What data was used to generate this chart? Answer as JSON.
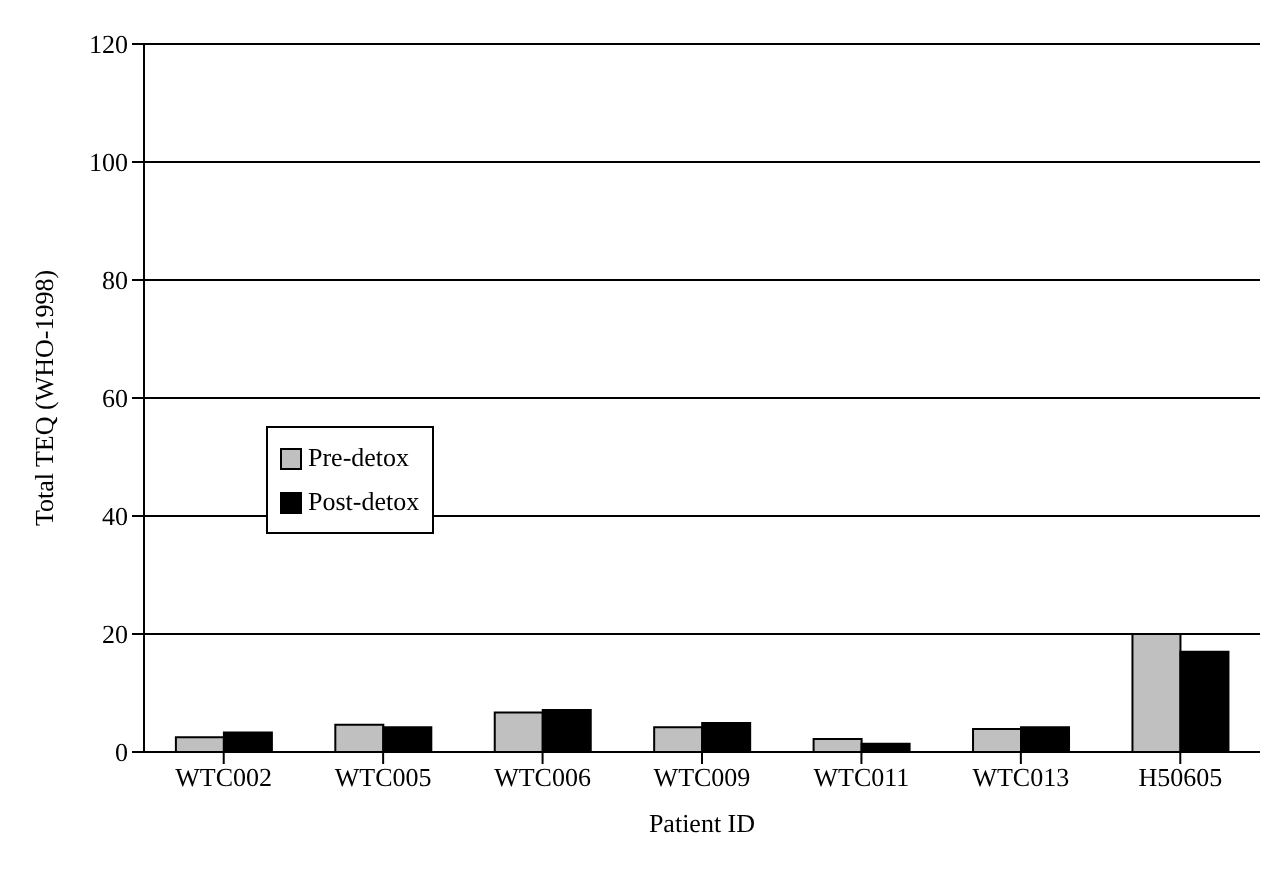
{
  "chart_data": {
    "type": "bar",
    "xlabel": "Patient ID",
    "ylabel": "Total TEQ (WHO-1998)",
    "categories": [
      "WTC002",
      "WTC005",
      "WTC006",
      "WTC009",
      "WTC011",
      "WTC013",
      "H50605"
    ],
    "series": [
      {
        "name": "Pre-detox",
        "color": "#c0c0c0",
        "values": [
          2.5,
          4.6,
          6.7,
          4.2,
          2.2,
          3.9,
          20
        ]
      },
      {
        "name": "Post-detox",
        "color": "#000000",
        "values": [
          3.3,
          4.2,
          7.1,
          4.9,
          1.4,
          4.2,
          17
        ]
      }
    ],
    "ylim": [
      0,
      120
    ],
    "yticks": [
      0,
      20,
      40,
      60,
      80,
      100,
      120
    ],
    "grid": "y",
    "legend": "center left"
  }
}
